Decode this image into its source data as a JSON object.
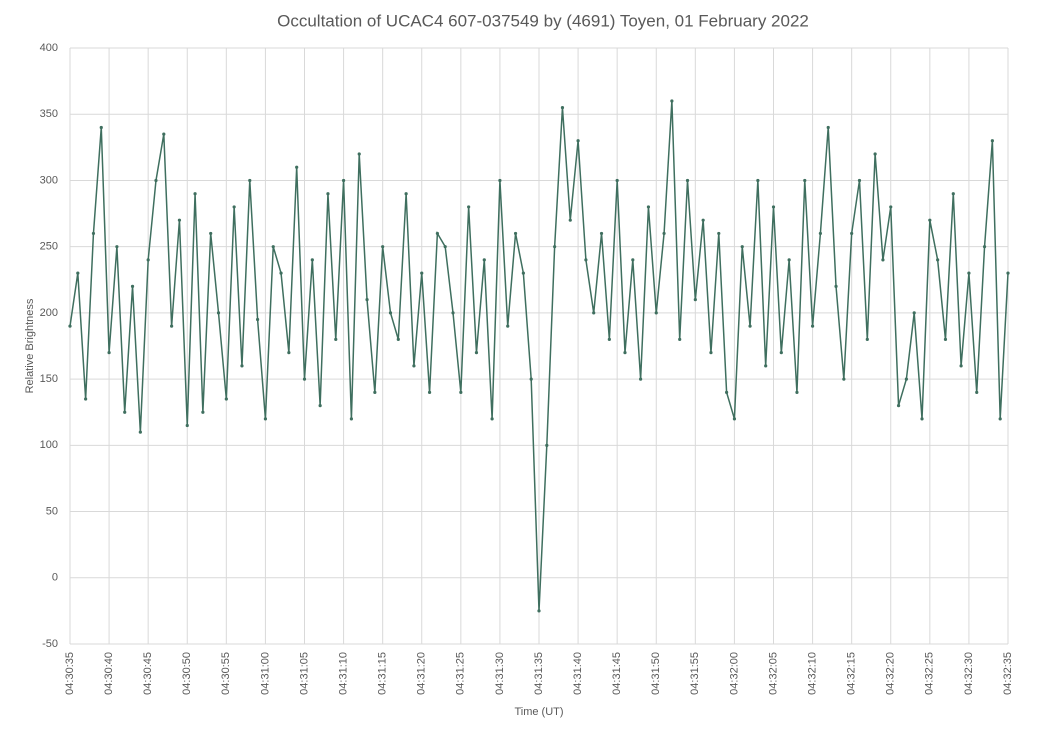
{
  "chart_data": {
    "type": "line",
    "title": "Occultation of UCAC4 607-037549 by (4691) Toyen, 01 February 2022",
    "x_label": "Time (UT)",
    "y_label": "Relative Brightness",
    "x": [
      "04:30:35",
      "04:30:36",
      "04:30:37",
      "04:30:38",
      "04:30:39",
      "04:30:40",
      "04:30:41",
      "04:30:42",
      "04:30:43",
      "04:30:44",
      "04:30:45",
      "04:30:46",
      "04:30:47",
      "04:30:48",
      "04:30:49",
      "04:30:50",
      "04:30:51",
      "04:30:52",
      "04:30:53",
      "04:30:54",
      "04:30:55",
      "04:30:56",
      "04:30:57",
      "04:30:58",
      "04:30:59",
      "04:31:00",
      "04:31:01",
      "04:31:02",
      "04:31:03",
      "04:31:04",
      "04:31:05",
      "04:31:06",
      "04:31:07",
      "04:31:08",
      "04:31:09",
      "04:31:10",
      "04:31:11",
      "04:31:12",
      "04:31:13",
      "04:31:14",
      "04:31:15",
      "04:31:16",
      "04:31:17",
      "04:31:18",
      "04:31:19",
      "04:31:20",
      "04:31:21",
      "04:31:22",
      "04:31:23",
      "04:31:24",
      "04:31:25",
      "04:31:26",
      "04:31:27",
      "04:31:28",
      "04:31:29",
      "04:31:30",
      "04:31:31",
      "04:31:32",
      "04:31:33",
      "04:31:34",
      "04:31:35",
      "04:31:36",
      "04:31:37",
      "04:31:38",
      "04:31:39",
      "04:31:40",
      "04:31:41",
      "04:31:42",
      "04:31:43",
      "04:31:44",
      "04:31:45",
      "04:31:46",
      "04:31:47",
      "04:31:48",
      "04:31:49",
      "04:31:50",
      "04:31:51",
      "04:31:52",
      "04:31:53",
      "04:31:54",
      "04:31:55",
      "04:31:56",
      "04:31:57",
      "04:31:58",
      "04:31:59",
      "04:32:00",
      "04:32:01",
      "04:32:02",
      "04:32:03",
      "04:32:04",
      "04:32:05",
      "04:32:06",
      "04:32:07",
      "04:32:08",
      "04:32:09",
      "04:32:10",
      "04:32:11",
      "04:32:12",
      "04:32:13",
      "04:32:14",
      "04:32:15",
      "04:32:16",
      "04:32:17",
      "04:32:18",
      "04:32:19",
      "04:32:20",
      "04:32:21",
      "04:32:22",
      "04:32:23",
      "04:32:24",
      "04:32:25",
      "04:32:26",
      "04:32:27",
      "04:32:28",
      "04:32:29",
      "04:32:30",
      "04:32:31",
      "04:32:32",
      "04:32:33",
      "04:32:34",
      "04:32:35"
    ],
    "series": [
      {
        "name": "Relative Brightness",
        "color": "#3f6f5f",
        "values": [
          190,
          230,
          135,
          260,
          340,
          170,
          250,
          125,
          220,
          110,
          240,
          300,
          335,
          190,
          270,
          115,
          290,
          125,
          260,
          200,
          135,
          280,
          160,
          300,
          195,
          120,
          250,
          230,
          170,
          310,
          150,
          240,
          130,
          290,
          180,
          300,
          120,
          320,
          210,
          140,
          250,
          200,
          180,
          290,
          160,
          230,
          140,
          260,
          250,
          200,
          140,
          280,
          170,
          240,
          120,
          300,
          190,
          260,
          230,
          150,
          -25,
          100,
          250,
          355,
          270,
          330,
          240,
          200,
          260,
          180,
          300,
          170,
          240,
          150,
          280,
          200,
          260,
          360,
          180,
          300,
          210,
          270,
          170,
          260,
          140,
          120,
          250,
          190,
          300,
          160,
          280,
          170,
          240,
          140,
          300,
          190,
          260,
          340,
          220,
          150,
          260,
          300,
          180,
          320,
          240,
          280,
          130,
          150,
          200,
          120,
          270,
          240,
          180,
          290,
          160,
          230,
          140,
          250,
          330,
          120,
          230
        ]
      }
    ],
    "ylim": [
      -50,
      400
    ],
    "yticks": [
      -50,
      0,
      50,
      100,
      150,
      200,
      250,
      300,
      350,
      400
    ],
    "xlim": [
      "04:30:35",
      "04:32:35"
    ],
    "xticks": [
      "04:30:35",
      "04:30:40",
      "04:30:45",
      "04:30:50",
      "04:30:55",
      "04:31:00",
      "04:31:05",
      "04:31:10",
      "04:31:15",
      "04:31:20",
      "04:31:25",
      "04:31:30",
      "04:31:35",
      "04:31:40",
      "04:31:45",
      "04:31:50",
      "04:31:55",
      "04:32:00",
      "04:32:05",
      "04:32:10",
      "04:32:15",
      "04:32:20",
      "04:32:25",
      "04:32:30",
      "04:32:35"
    ],
    "grid": true
  }
}
